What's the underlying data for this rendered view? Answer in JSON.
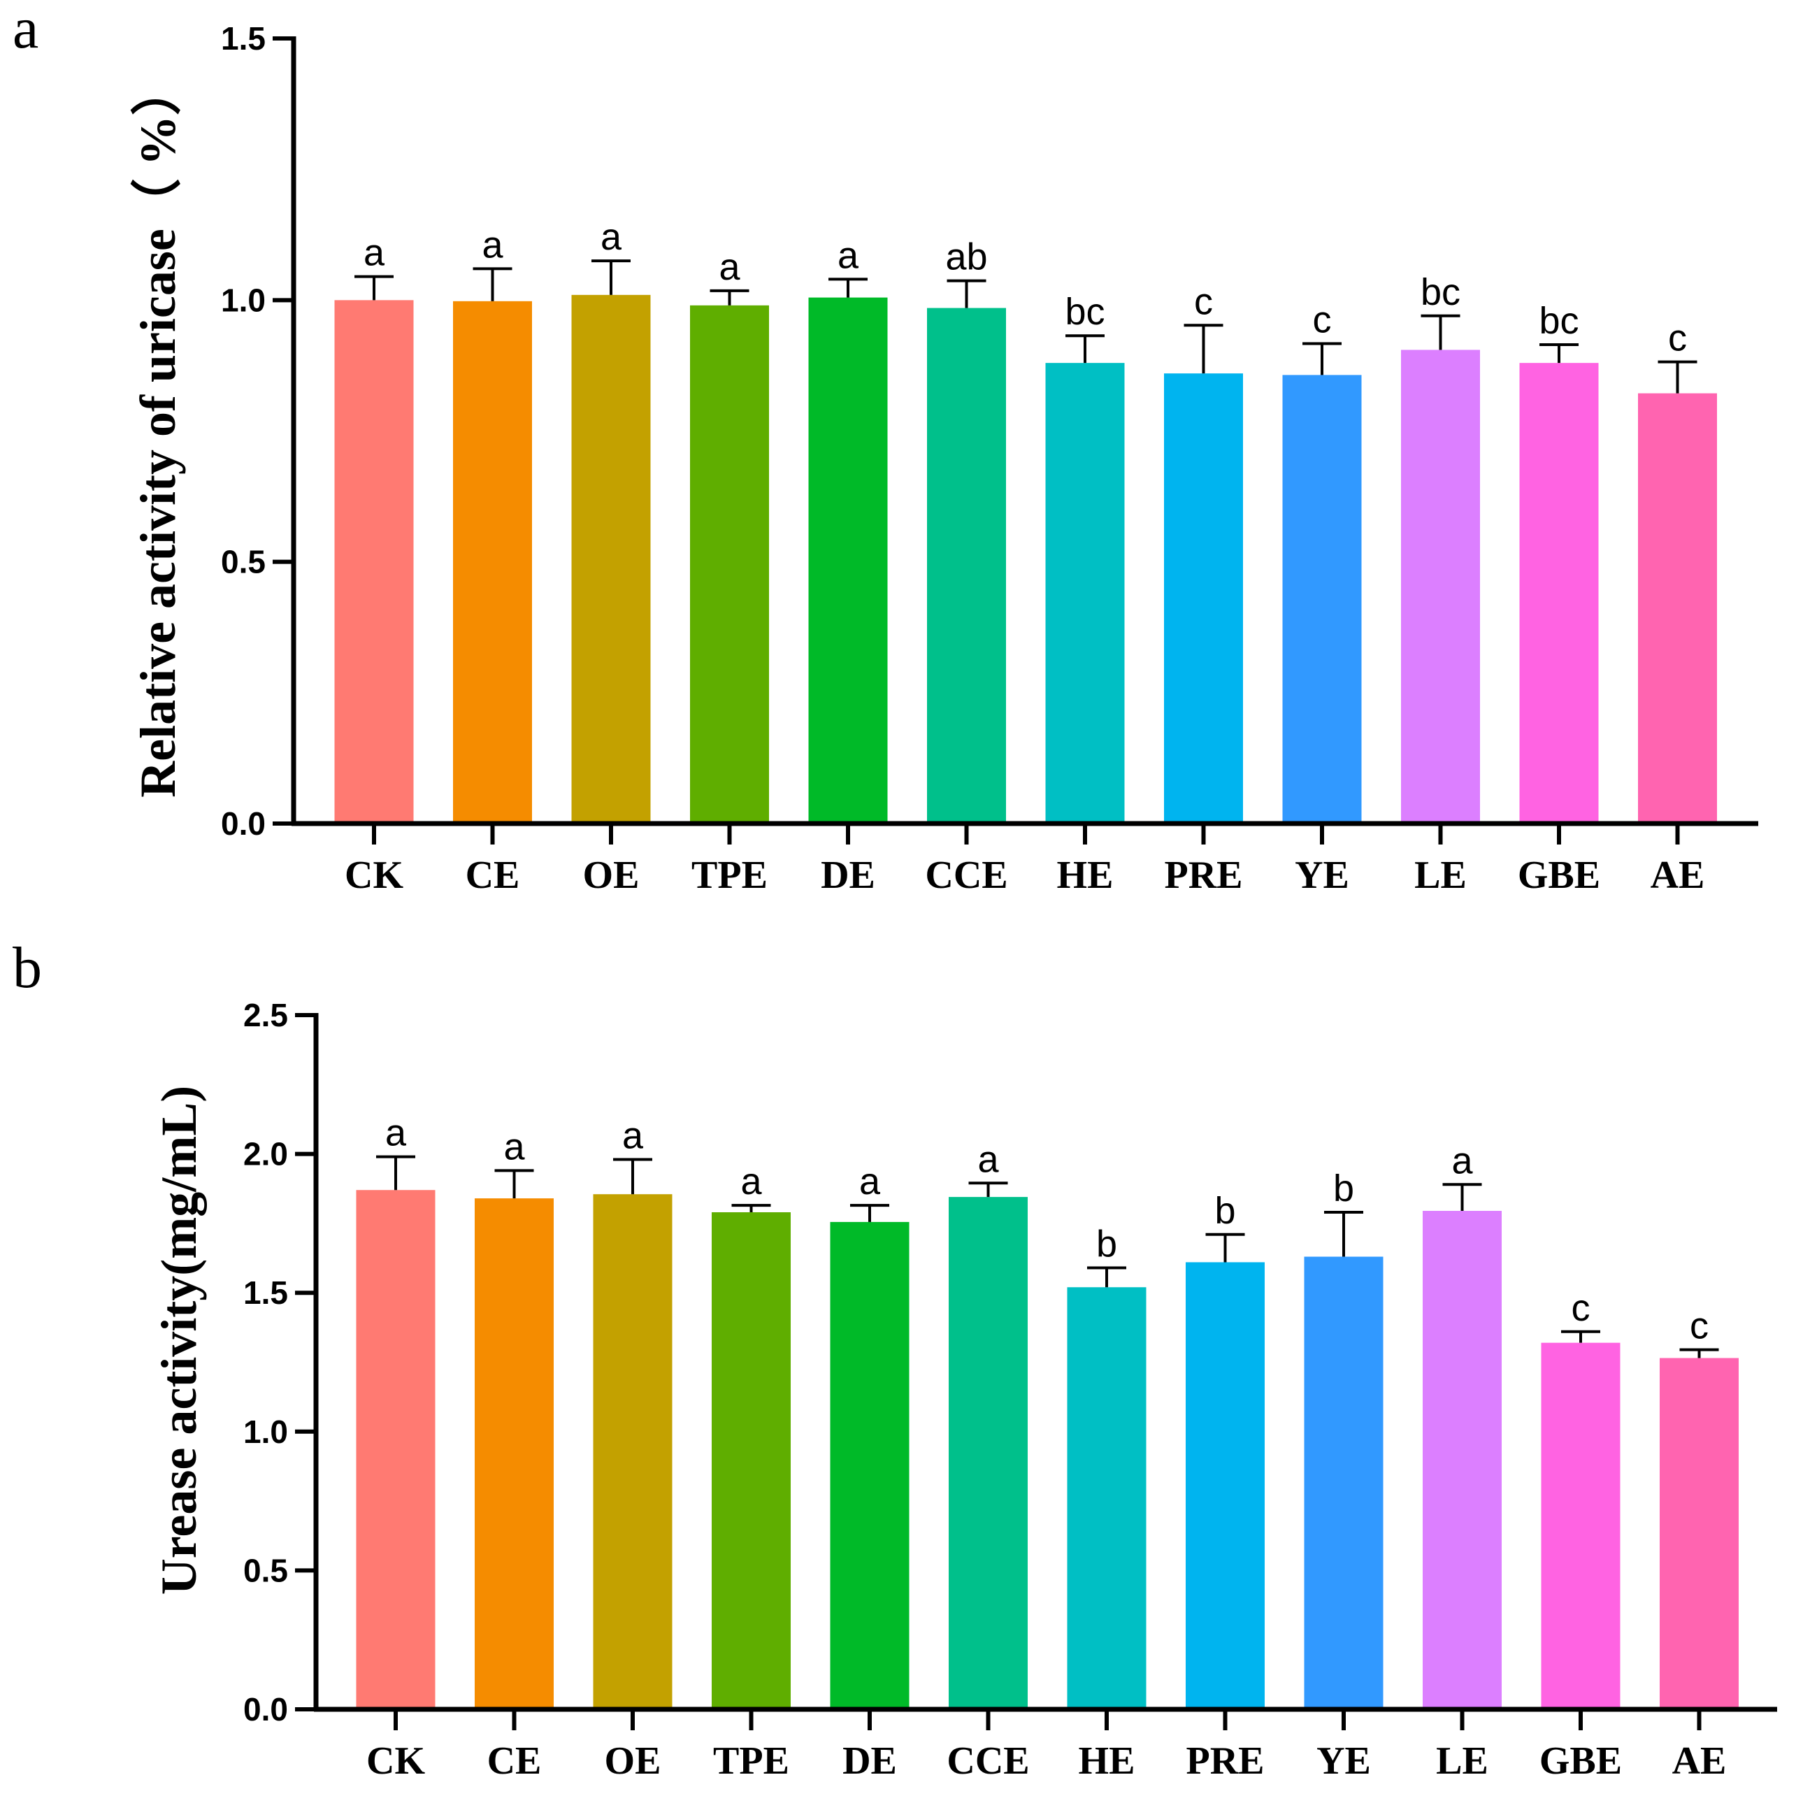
{
  "chart_data": [
    {
      "panel": "a",
      "type": "bar",
      "ylabel": "Relative activity of uricase（ %）",
      "ylim": [
        0,
        1.5
      ],
      "yticks": [
        "0.0",
        "0.5",
        "1.0",
        "1.5"
      ],
      "categories": [
        "CK",
        "CE",
        "OE",
        "TPE",
        "DE",
        "CCE",
        "HE",
        "PRE",
        "YE",
        "LE",
        "GBE",
        "AE"
      ],
      "values": [
        1.0,
        0.998,
        1.01,
        0.99,
        1.005,
        0.985,
        0.88,
        0.86,
        0.857,
        0.905,
        0.88,
        0.822
      ],
      "errors": [
        0.045,
        0.062,
        0.065,
        0.028,
        0.035,
        0.052,
        0.052,
        0.092,
        0.06,
        0.065,
        0.035,
        0.06
      ],
      "labels": [
        "a",
        "a",
        "a",
        "a",
        "a",
        "ab",
        "bc",
        "c",
        "c",
        "bc",
        "bc",
        "c"
      ],
      "colors": [
        "#FF7A72",
        "#F58C00",
        "#C3A100",
        "#5FAE00",
        "#00BA28",
        "#00C08B",
        "#00BFC4",
        "#00B4EF",
        "#3199FF",
        "#DC7FFF",
        "#FF63E2",
        "#FF64B0"
      ]
    },
    {
      "panel": "b",
      "type": "bar",
      "ylabel": "Urease activity(mg/mL)",
      "ylim": [
        0,
        2.5
      ],
      "yticks": [
        "0.0",
        "0.5",
        "1.0",
        "1.5",
        "2.0",
        "2.5"
      ],
      "categories": [
        "CK",
        "CE",
        "OE",
        "TPE",
        "DE",
        "CCE",
        "HE",
        "PRE",
        "YE",
        "LE",
        "GBE",
        "AE"
      ],
      "values": [
        1.87,
        1.84,
        1.855,
        1.79,
        1.755,
        1.845,
        1.52,
        1.61,
        1.63,
        1.795,
        1.32,
        1.265
      ],
      "errors": [
        0.12,
        0.1,
        0.125,
        0.025,
        0.06,
        0.05,
        0.07,
        0.1,
        0.16,
        0.095,
        0.04,
        0.03
      ],
      "labels": [
        "a",
        "a",
        "a",
        "a",
        "a",
        "a",
        "b",
        "b",
        "b",
        "a",
        "c",
        "c"
      ],
      "colors": [
        "#FF7A72",
        "#F58C00",
        "#C3A100",
        "#5FAE00",
        "#00BA28",
        "#00C08B",
        "#00BFC4",
        "#00B4EF",
        "#3199FF",
        "#DC7FFF",
        "#FF63E2",
        "#FF64B0"
      ]
    }
  ]
}
